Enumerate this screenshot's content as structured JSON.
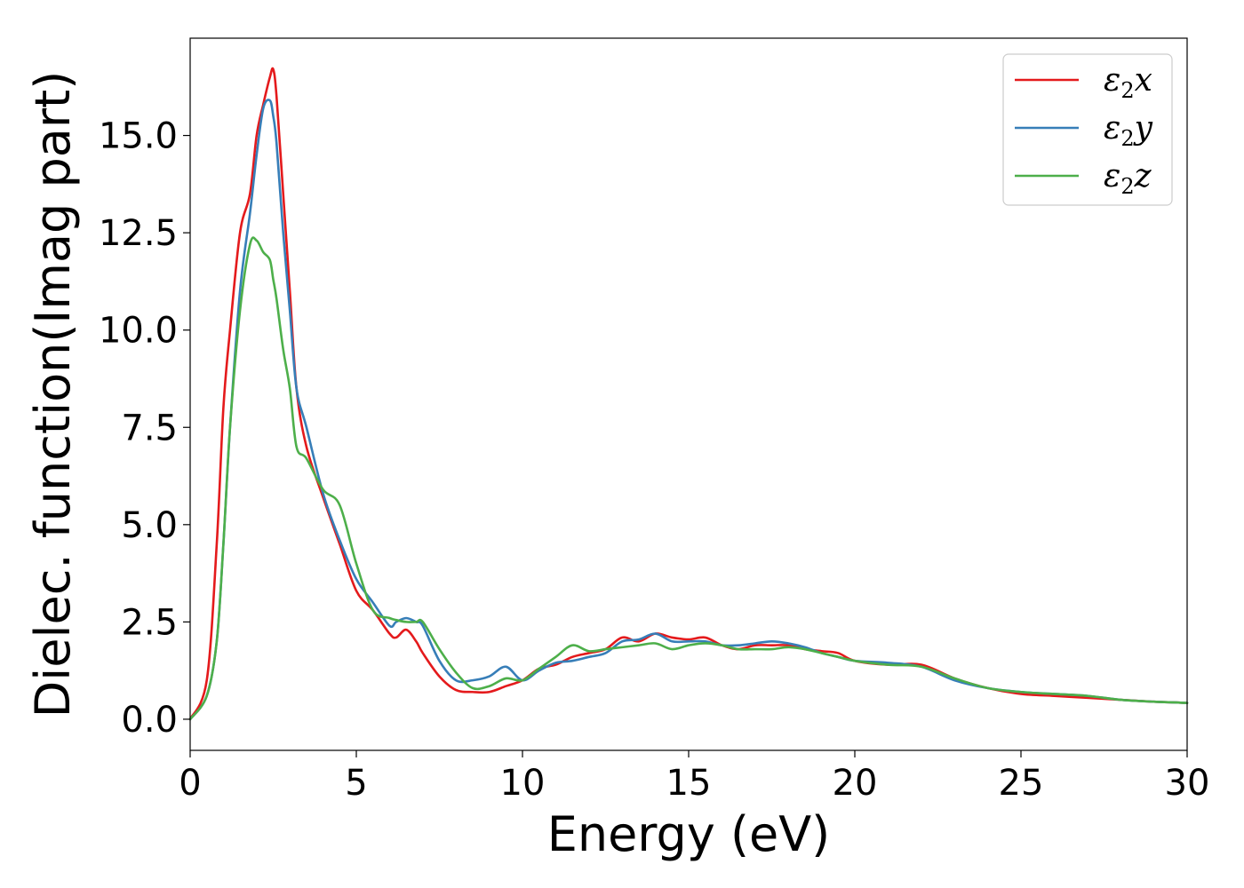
{
  "chart_data": {
    "type": "line",
    "title": "",
    "xlabel": "Energy (eV)",
    "ylabel": "Dielec. function(Imag part)",
    "xlim": [
      0,
      30
    ],
    "ylim": [
      -0.8,
      17.5
    ],
    "xticks": [
      "0",
      "5",
      "10",
      "15",
      "20",
      "25",
      "30"
    ],
    "yticks": [
      "0.0",
      "2.5",
      "5.0",
      "7.5",
      "10.0",
      "12.5",
      "15.0"
    ],
    "legend_position": "top-right",
    "grid": false,
    "series": [
      {
        "name": "ε₂x",
        "legend_base": "ε",
        "legend_sub": "2",
        "legend_suffix": "x",
        "color": "#e41a1c",
        "x": [
          0,
          0.5,
          0.8,
          1.0,
          1.2,
          1.5,
          1.8,
          2.0,
          2.2,
          2.4,
          2.5,
          2.6,
          2.8,
          3.0,
          3.2,
          3.5,
          4.0,
          4.5,
          5.0,
          5.5,
          6.0,
          6.2,
          6.5,
          6.8,
          7.0,
          7.5,
          8.0,
          8.5,
          9.0,
          9.5,
          10.0,
          10.5,
          11.0,
          11.5,
          12.0,
          12.5,
          13.0,
          13.5,
          14.0,
          14.5,
          15.0,
          15.5,
          16.0,
          16.5,
          17.0,
          17.5,
          18.0,
          18.5,
          19.0,
          19.5,
          20.0,
          21.0,
          22.0,
          23.0,
          24.0,
          25.0,
          26.0,
          27.0,
          28.0,
          29.0,
          30.0
        ],
        "y": [
          0.0,
          1.0,
          4.5,
          8.0,
          10.0,
          12.5,
          13.5,
          15.0,
          15.8,
          16.5,
          16.7,
          16.0,
          13.5,
          11.0,
          8.5,
          7.0,
          5.7,
          4.5,
          3.3,
          2.8,
          2.2,
          2.1,
          2.3,
          2.0,
          1.7,
          1.1,
          0.75,
          0.7,
          0.7,
          0.85,
          1.0,
          1.3,
          1.4,
          1.6,
          1.7,
          1.8,
          2.1,
          2.0,
          2.2,
          2.1,
          2.05,
          2.1,
          1.9,
          1.8,
          1.9,
          1.9,
          1.9,
          1.8,
          1.75,
          1.7,
          1.5,
          1.4,
          1.4,
          1.05,
          0.8,
          0.65,
          0.6,
          0.55,
          0.5,
          0.45,
          0.42
        ]
      },
      {
        "name": "ε₂y",
        "legend_base": "ε",
        "legend_sub": "2",
        "legend_suffix": "y",
        "color": "#377eb8",
        "x": [
          0,
          0.5,
          0.8,
          1.0,
          1.2,
          1.5,
          1.8,
          2.0,
          2.2,
          2.4,
          2.5,
          2.6,
          2.8,
          3.0,
          3.2,
          3.5,
          4.0,
          4.5,
          5.0,
          5.5,
          6.0,
          6.2,
          6.5,
          6.8,
          7.0,
          7.5,
          8.0,
          8.5,
          9.0,
          9.5,
          10.0,
          10.5,
          11.0,
          11.5,
          12.0,
          12.5,
          13.0,
          13.5,
          14.0,
          14.5,
          15.0,
          15.5,
          16.0,
          16.5,
          17.0,
          17.5,
          18.0,
          18.5,
          19.0,
          19.5,
          20.0,
          21.0,
          22.0,
          23.0,
          24.0,
          25.0,
          26.0,
          27.0,
          28.0,
          29.0,
          30.0
        ],
        "y": [
          0.0,
          0.6,
          2.0,
          4.5,
          7.5,
          11.0,
          13.0,
          14.5,
          15.7,
          15.9,
          15.5,
          14.8,
          12.5,
          10.5,
          8.5,
          7.5,
          5.8,
          4.6,
          3.6,
          3.0,
          2.4,
          2.5,
          2.6,
          2.5,
          2.4,
          1.5,
          1.0,
          1.0,
          1.1,
          1.35,
          1.0,
          1.25,
          1.45,
          1.5,
          1.6,
          1.7,
          2.0,
          2.05,
          2.2,
          2.0,
          2.0,
          2.0,
          1.9,
          1.9,
          1.95,
          2.0,
          1.95,
          1.85,
          1.7,
          1.6,
          1.5,
          1.45,
          1.35,
          1.0,
          0.8,
          0.7,
          0.65,
          0.6,
          0.5,
          0.45,
          0.42
        ]
      },
      {
        "name": "ε₂z",
        "legend_base": "ε",
        "legend_sub": "2",
        "legend_suffix": "z",
        "color": "#4daf4a",
        "x": [
          0,
          0.5,
          0.8,
          1.0,
          1.2,
          1.5,
          1.8,
          2.0,
          2.2,
          2.4,
          2.5,
          2.6,
          2.8,
          3.0,
          3.2,
          3.5,
          4.0,
          4.5,
          5.0,
          5.5,
          6.0,
          6.2,
          6.5,
          6.8,
          7.0,
          7.5,
          8.0,
          8.5,
          9.0,
          9.5,
          10.0,
          10.5,
          11.0,
          11.5,
          12.0,
          12.5,
          13.0,
          13.5,
          14.0,
          14.5,
          15.0,
          15.5,
          16.0,
          16.5,
          17.0,
          17.5,
          18.0,
          18.5,
          19.0,
          19.5,
          20.0,
          21.0,
          22.0,
          23.0,
          24.0,
          25.0,
          26.0,
          27.0,
          28.0,
          29.0,
          30.0
        ],
        "y": [
          0.0,
          0.6,
          2.0,
          4.5,
          7.5,
          10.5,
          12.2,
          12.3,
          12.0,
          11.8,
          11.3,
          10.8,
          9.5,
          8.5,
          7.0,
          6.7,
          5.9,
          5.5,
          4.0,
          2.8,
          2.6,
          2.55,
          2.5,
          2.5,
          2.5,
          1.8,
          1.2,
          0.8,
          0.85,
          1.05,
          1.0,
          1.3,
          1.6,
          1.9,
          1.75,
          1.8,
          1.85,
          1.9,
          1.95,
          1.8,
          1.9,
          1.95,
          1.9,
          1.8,
          1.8,
          1.8,
          1.85,
          1.8,
          1.7,
          1.6,
          1.5,
          1.4,
          1.35,
          1.05,
          0.8,
          0.7,
          0.65,
          0.6,
          0.5,
          0.45,
          0.42
        ]
      }
    ]
  }
}
